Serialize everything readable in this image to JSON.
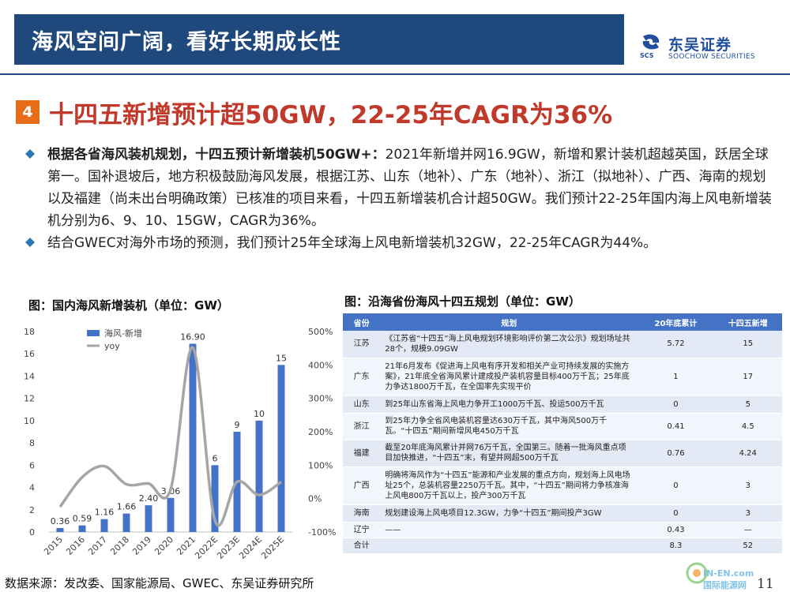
{
  "header": {
    "title": "海风空间广阔，看好长期成长性",
    "logo_cn": "东吴证券",
    "logo_en": "SOOCHOW SECURITIES",
    "logo_mark": "SCS"
  },
  "section": {
    "number": "4",
    "title": "十四五新增预计超50GW，22-25年CAGR为36%"
  },
  "bullets": [
    {
      "bold": "根据各省海风装机规划，十四五预计新增装机50GW+：",
      "text": "2021年新增并网16.9GW，新增和累计装机超越英国，跃居全球第一。国补退坡后，地方积极鼓励海风发展，根据江苏、山东（地补）、广东（地补）、浙江（拟地补）、广西、海南的规划以及福建（尚未出台明确政策）已核准的项目来看，十四五新增装机合计超50GW。我们预计22-25年国内海上风电新增装机分别为6、9、10、15GW，CAGR为36%。"
    },
    {
      "bold": "",
      "text": "结合GWEC对海外市场的预测，我们预计25年全球海上风电新增装机32GW，22-25年CAGR为44%。"
    }
  ],
  "chart_title": "图：国内海风新增装机（单位：GW）",
  "table_title": "图：沿海省份海风十四五规划（单位：GW）",
  "chart_data": {
    "type": "bar",
    "categories": [
      "2015",
      "2016",
      "2017",
      "2018",
      "2019",
      "2020",
      "2021",
      "2022E",
      "2023E",
      "2024E",
      "2025E"
    ],
    "series": [
      {
        "name": "海风-新增",
        "type": "bar",
        "axis": "left",
        "values": [
          0.36,
          0.59,
          1.16,
          1.66,
          2.4,
          3.06,
          16.9,
          6,
          9,
          10,
          15
        ],
        "labels": [
          "0.36",
          "0.59",
          "1.16",
          "1.66",
          "2.40",
          "3.06",
          "16.90",
          "6",
          "9",
          "10",
          "15"
        ]
      },
      {
        "name": "yoy",
        "type": "line",
        "axis": "right",
        "values": [
          -25,
          64,
          97,
          43,
          45,
          28,
          452,
          -65,
          50,
          11,
          50
        ]
      }
    ],
    "ylim": [
      0,
      18
    ],
    "yticks": [
      "0",
      "2",
      "4",
      "6",
      "8",
      "10",
      "12",
      "14",
      "16",
      "18"
    ],
    "y2lim": [
      -100,
      500
    ],
    "y2ticks": [
      "-100%",
      "0%",
      "100%",
      "200%",
      "300%",
      "400%",
      "500%"
    ],
    "colors": {
      "bar": "#4472c4",
      "line": "#a6a6a6"
    },
    "legend": "top-left"
  },
  "table": {
    "headers": [
      "省份",
      "规划",
      "20年底累计",
      "十四五新增"
    ],
    "rows": [
      {
        "province": "江苏",
        "plan": "《江苏省“十四五”海上风电规划环境影响评价第二次公示》规划场址共28个，规模9.09GW",
        "cum": "5.72",
        "add": "15"
      },
      {
        "province": "广东",
        "plan": "21年6月发布《促进海上风电有序开发和相关产业可持续发展的实施方案》，21年底全省海风累计建成投产装机容量目标400万千瓦；25年底力争达1800万千瓦，在全国率先实现平价",
        "cum": "1",
        "add": "17"
      },
      {
        "province": "山东",
        "plan": "到25年山东省海上风电力争开工1000万千瓦、投运500万千瓦",
        "cum": "0",
        "add": "5"
      },
      {
        "province": "浙江",
        "plan": "到25年力争全省风电装机容量达630万千瓦，其中海风500万千瓦。“十四五”期间新增风电450万千瓦",
        "cum": "0.41",
        "add": "4.5"
      },
      {
        "province": "福建",
        "plan": "截至20年底海风累计并网76万千瓦，全国第三。随着一批海风重点项目加快推进，“十四五”末，有望并网超500万千瓦",
        "cum": "0.76",
        "add": "4.24"
      },
      {
        "province": "广西",
        "plan": "明确将海风作为“十四五”能源和产业发展的重点方向，规划海上风电场址25个，总装机容量2250万千瓦。其中，“十四五”期间将力争核准海上风电800万千瓦以上，投产300万千瓦",
        "cum": "0",
        "add": "3"
      },
      {
        "province": "海南",
        "plan": "规划建设海上风电项目12.3GW，力争“十四五”期间投产3GW",
        "cum": "0",
        "add": "3"
      },
      {
        "province": "辽宁",
        "plan": "——",
        "cum": "0.43",
        "add": "—"
      },
      {
        "province": "合计",
        "plan": "",
        "cum": "8.3",
        "add": "52"
      }
    ]
  },
  "source": "数据来源：发改委、国家能源局、GWEC、东吴证券研究所",
  "page_number": "11",
  "watermark": "IN-EN.com 国际能源网"
}
